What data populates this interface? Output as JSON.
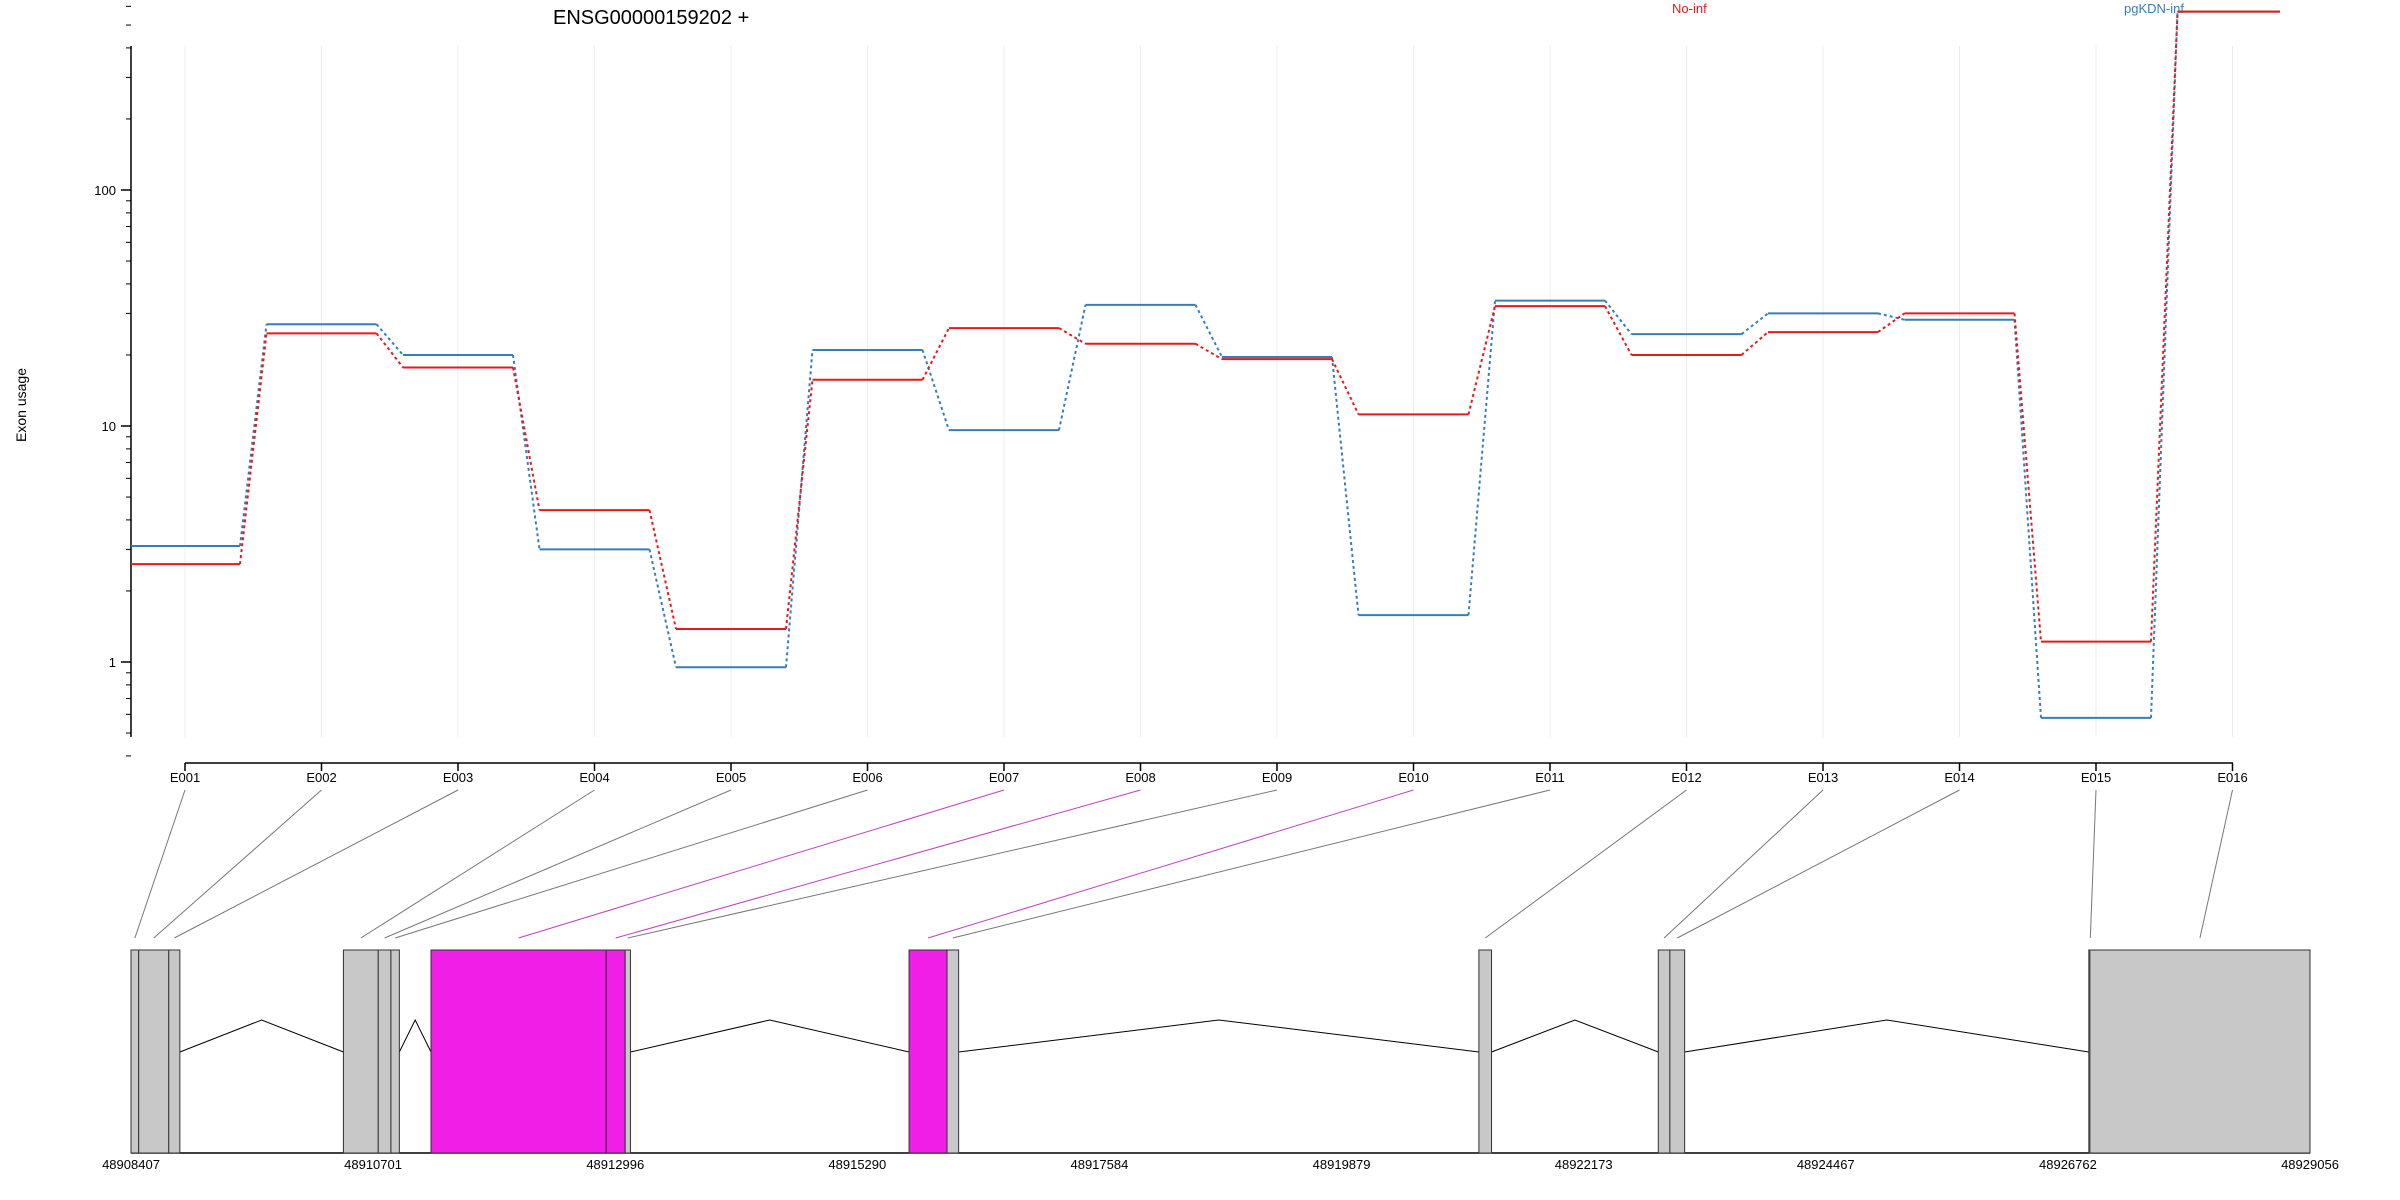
{
  "chart_data": {
    "type": "line",
    "title": "ENSG00000159202 +",
    "ylabel": "Exon usage",
    "xlabel": "",
    "y_scale": "log",
    "ylim": [
      0.38,
      800
    ],
    "yticks": [
      1,
      10,
      100
    ],
    "ytick_labels": [
      "1",
      "10",
      "100"
    ],
    "grid": "vertical",
    "legend_placement": "top",
    "categories": [
      "E001",
      "E002",
      "E003",
      "E004",
      "E005",
      "E006",
      "E007",
      "E008",
      "E009",
      "E010",
      "E011",
      "E012",
      "E013",
      "E014",
      "E015",
      "E016"
    ],
    "series": [
      {
        "name": "No-inf",
        "color": "#e41a1c",
        "values": [
          2.6,
          24.7,
          17.7,
          4.4,
          1.38,
          15.7,
          26.0,
          22.3,
          19.2,
          11.2,
          32.2,
          20.0,
          25.0,
          30.0,
          1.22,
          570
        ]
      },
      {
        "name": "pgKDN-inf",
        "color": "#377eb8",
        "values": [
          3.1,
          27.0,
          20.0,
          3.0,
          0.95,
          21.0,
          9.6,
          32.6,
          19.6,
          1.58,
          34.0,
          24.5,
          30.0,
          28.2,
          0.58,
          570
        ]
      }
    ],
    "gene_model": {
      "coordinate_ticks": [
        "48908407",
        "48910701",
        "48912996",
        "48915290",
        "48917584",
        "48919879",
        "48922173",
        "48924467",
        "48926762",
        "48929056"
      ],
      "exons": [
        {
          "id": "E001",
          "start": 48908407,
          "end": 48908480,
          "highlight": false
        },
        {
          "id": "E002",
          "start": 48908480,
          "end": 48908765,
          "highlight": false
        },
        {
          "id": "E003",
          "start": 48908765,
          "end": 48908870,
          "highlight": false
        },
        {
          "id": "E004",
          "start": 48910420,
          "end": 48910750,
          "highlight": false
        },
        {
          "id": "E005",
          "start": 48910750,
          "end": 48910870,
          "highlight": false
        },
        {
          "id": "E006",
          "start": 48910870,
          "end": 48910950,
          "highlight": false
        },
        {
          "id": "E007",
          "start": 48911250,
          "end": 48912910,
          "highlight": true
        },
        {
          "id": "E008",
          "start": 48912910,
          "end": 48913090,
          "highlight": true
        },
        {
          "id": "E009",
          "start": 48913090,
          "end": 48913140,
          "highlight": false
        },
        {
          "id": "E010",
          "start": 48915780,
          "end": 48916140,
          "highlight": true
        },
        {
          "id": "E011",
          "start": 48916140,
          "end": 48916250,
          "highlight": false
        },
        {
          "id": "E012",
          "start": 48921180,
          "end": 48921300,
          "highlight": false
        },
        {
          "id": "E013",
          "start": 48922880,
          "end": 48922990,
          "highlight": false
        },
        {
          "id": "E014",
          "start": 48922990,
          "end": 48923130,
          "highlight": false
        },
        {
          "id": "E015",
          "start": 48926960,
          "end": 48926970,
          "highlight": false
        },
        {
          "id": "E016",
          "start": 48926970,
          "end": 48929056,
          "highlight": false
        }
      ],
      "colors": {
        "exon": "#c8c8c8",
        "highlight": "#f01ee6",
        "intron": "#000000",
        "connector": "#777777",
        "connector_highlight": "#c040c0"
      }
    }
  }
}
